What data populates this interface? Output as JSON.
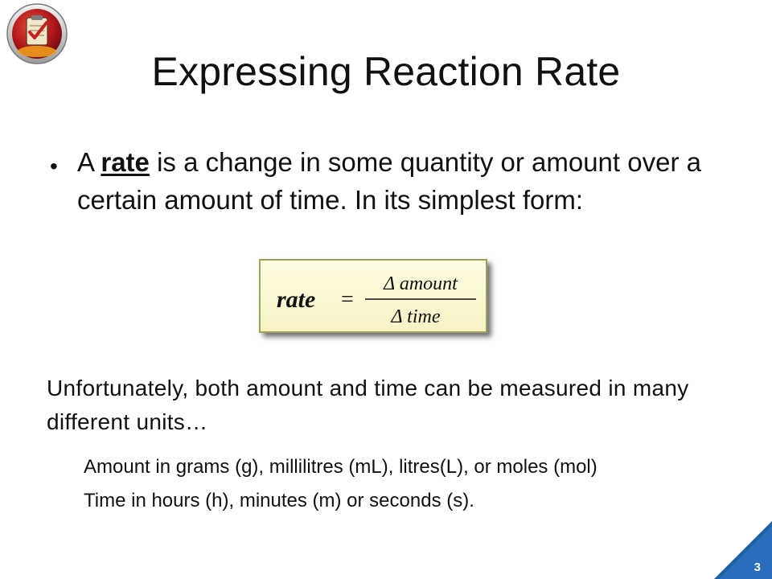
{
  "slide": {
    "title": "Expressing Reaction Rate",
    "bullet": {
      "prefix": "A ",
      "keyword": "rate",
      "suffix": " is a change in some quantity or amount over a certain amount of time.  In its simplest form:"
    },
    "formula": {
      "lhs": "rate",
      "equals": "=",
      "numerator": "Δ amount",
      "denominator": "Δ time"
    },
    "paragraph": "Unfortunately, both amount and time can be measured in many different units…",
    "sub_items": [
      "Amount in grams (g), millilitres (mL), litres(L), or moles (mol)",
      "Time in hours (h), minutes (m) or seconds (s)."
    ],
    "page_number": "3"
  },
  "colors": {
    "accent_blue": "#1f5fa6",
    "formula_bg": "#fdfbd6",
    "formula_border": "#9aa35c",
    "logo_red": "#b2181c"
  },
  "icons": {
    "logo": "checklist-clipboard-icon"
  }
}
